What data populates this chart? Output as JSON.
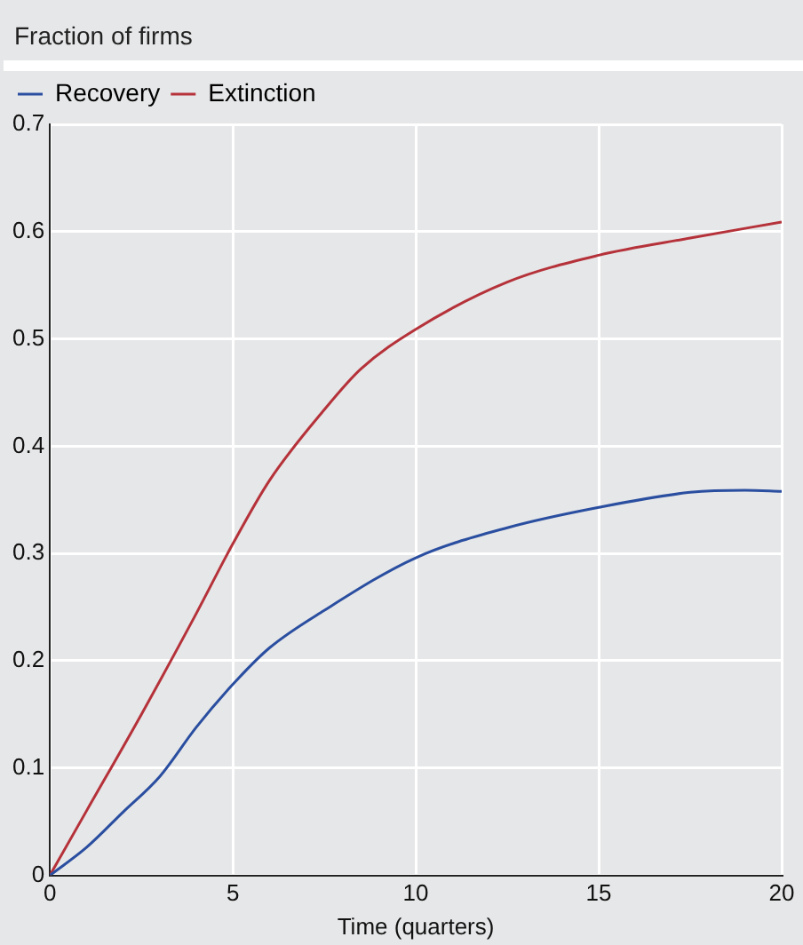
{
  "chart_data": {
    "type": "line",
    "title": "Fraction of firms",
    "xlabel": "Time (quarters)",
    "xlim": [
      0,
      20
    ],
    "xticks": [
      0,
      5,
      10,
      15,
      20
    ],
    "ylim": [
      0,
      0.7
    ],
    "yticks": [
      0,
      0.1,
      0.2,
      0.3,
      0.4,
      0.5,
      0.6,
      0.7
    ],
    "grid": true,
    "legend": "top left",
    "marker": "none",
    "line_style": "solid",
    "series": [
      {
        "name": "Recovery",
        "color": "#2a4ea0",
        "x": [
          0,
          1,
          2,
          3,
          4,
          5,
          6,
          7.5,
          10,
          12.5,
          15,
          17.5,
          19,
          20
        ],
        "values": [
          0,
          0.026,
          0.059,
          0.092,
          0.138,
          0.178,
          0.212,
          0.247,
          0.296,
          0.324,
          0.343,
          0.357,
          0.359,
          0.358
        ]
      },
      {
        "name": "Extinction",
        "color": "#b5323a",
        "x": [
          0,
          1,
          2.5,
          4,
          5,
          6,
          7.5,
          8.5,
          10,
          12.5,
          15,
          17.5,
          20
        ],
        "values": [
          0,
          0.06,
          0.15,
          0.244,
          0.309,
          0.368,
          0.434,
          0.472,
          0.509,
          0.553,
          0.578,
          0.594,
          0.609
        ]
      }
    ]
  }
}
